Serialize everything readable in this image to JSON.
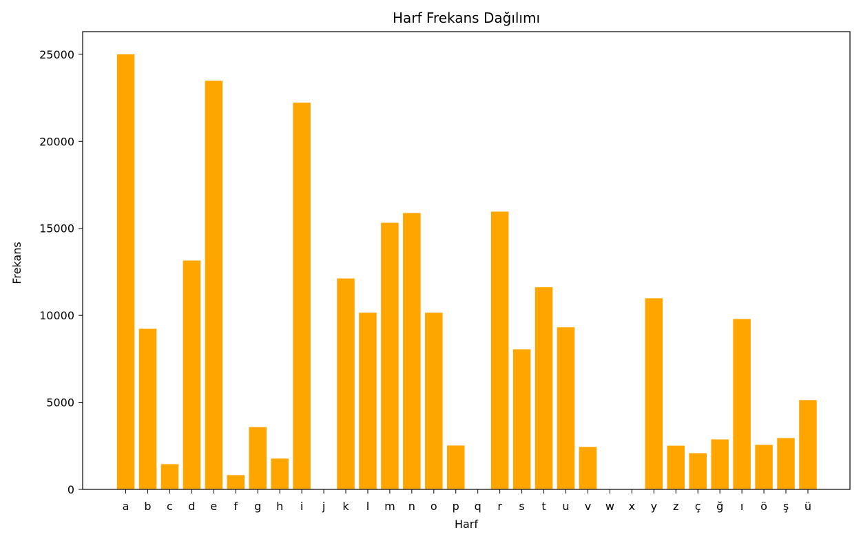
{
  "chart_data": {
    "type": "bar",
    "title": "Harf Frekans Dağılımı",
    "xlabel": "Harf",
    "ylabel": "Frekans",
    "ylim": [
      0,
      26300
    ],
    "yticks": [
      0,
      5000,
      10000,
      15000,
      20000,
      25000
    ],
    "bar_color": "#FFA500",
    "categories": [
      "a",
      "b",
      "c",
      "d",
      "e",
      "f",
      "g",
      "h",
      "i",
      "j",
      "k",
      "l",
      "m",
      "n",
      "o",
      "p",
      "q",
      "r",
      "s",
      "t",
      "u",
      "v",
      "w",
      "x",
      "y",
      "z",
      "ç",
      "ğ",
      "ı",
      "ö",
      "ş",
      "ü"
    ],
    "values": [
      25000,
      9230,
      1450,
      13150,
      23480,
      820,
      3580,
      1770,
      22220,
      0,
      12120,
      10150,
      15320,
      15880,
      10150,
      2520,
      0,
      15960,
      8050,
      11620,
      9320,
      2440,
      0,
      0,
      10980,
      2510,
      2080,
      2870,
      9790,
      2560,
      2950,
      5130
    ]
  }
}
